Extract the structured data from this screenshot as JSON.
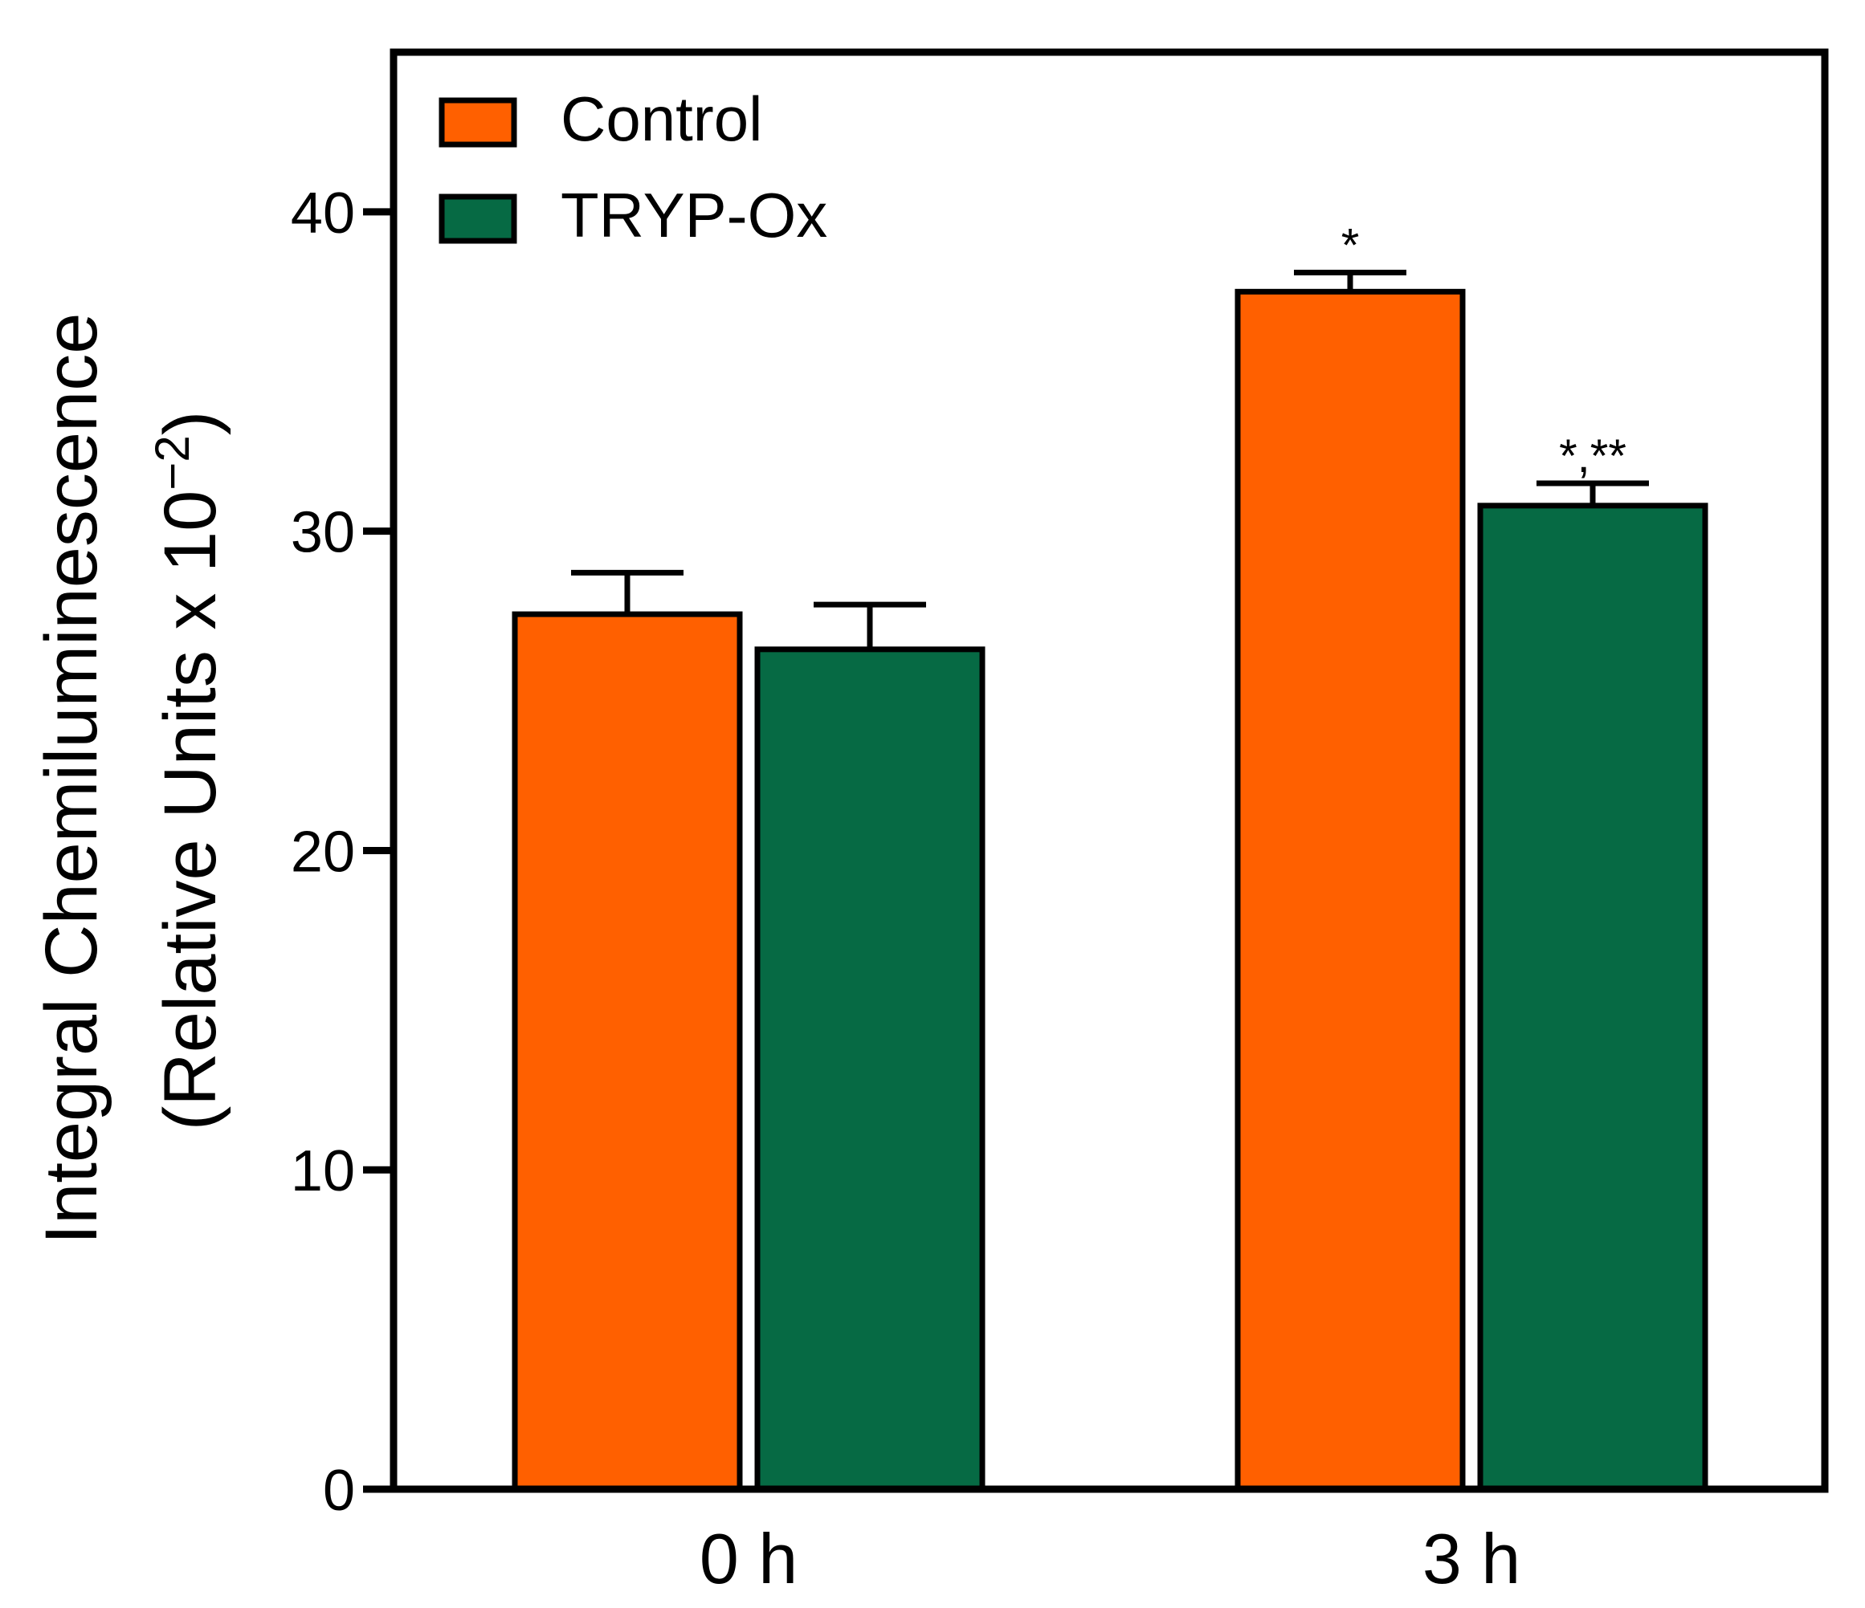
{
  "chart_data": {
    "type": "bar",
    "title": "",
    "xlabel": "",
    "ylabel_line1": "Integral Chemiluminescence",
    "ylabel_line2_prefix": "(Relative Units x 10",
    "ylabel_line2_exponent": "−2",
    "ylabel_line2_suffix": ")",
    "categories": [
      "0 h",
      "3 h"
    ],
    "ylim": [
      0,
      45
    ],
    "yticks": [
      0,
      10,
      20,
      30,
      40
    ],
    "ytick_labels": [
      "0",
      "10",
      "20",
      "30",
      "40"
    ],
    "grid": false,
    "legend_position": "top-left",
    "series": [
      {
        "name": "Control",
        "color": "#ff6000",
        "values": [
          27.4,
          37.5
        ],
        "errors": [
          1.3,
          0.6
        ],
        "annotations": [
          "",
          "*"
        ]
      },
      {
        "name": "TRYP-Ox",
        "color": "#066a44",
        "values": [
          26.3,
          30.8
        ],
        "errors": [
          1.4,
          0.7
        ],
        "annotations": [
          "",
          "*,**"
        ]
      }
    ]
  }
}
